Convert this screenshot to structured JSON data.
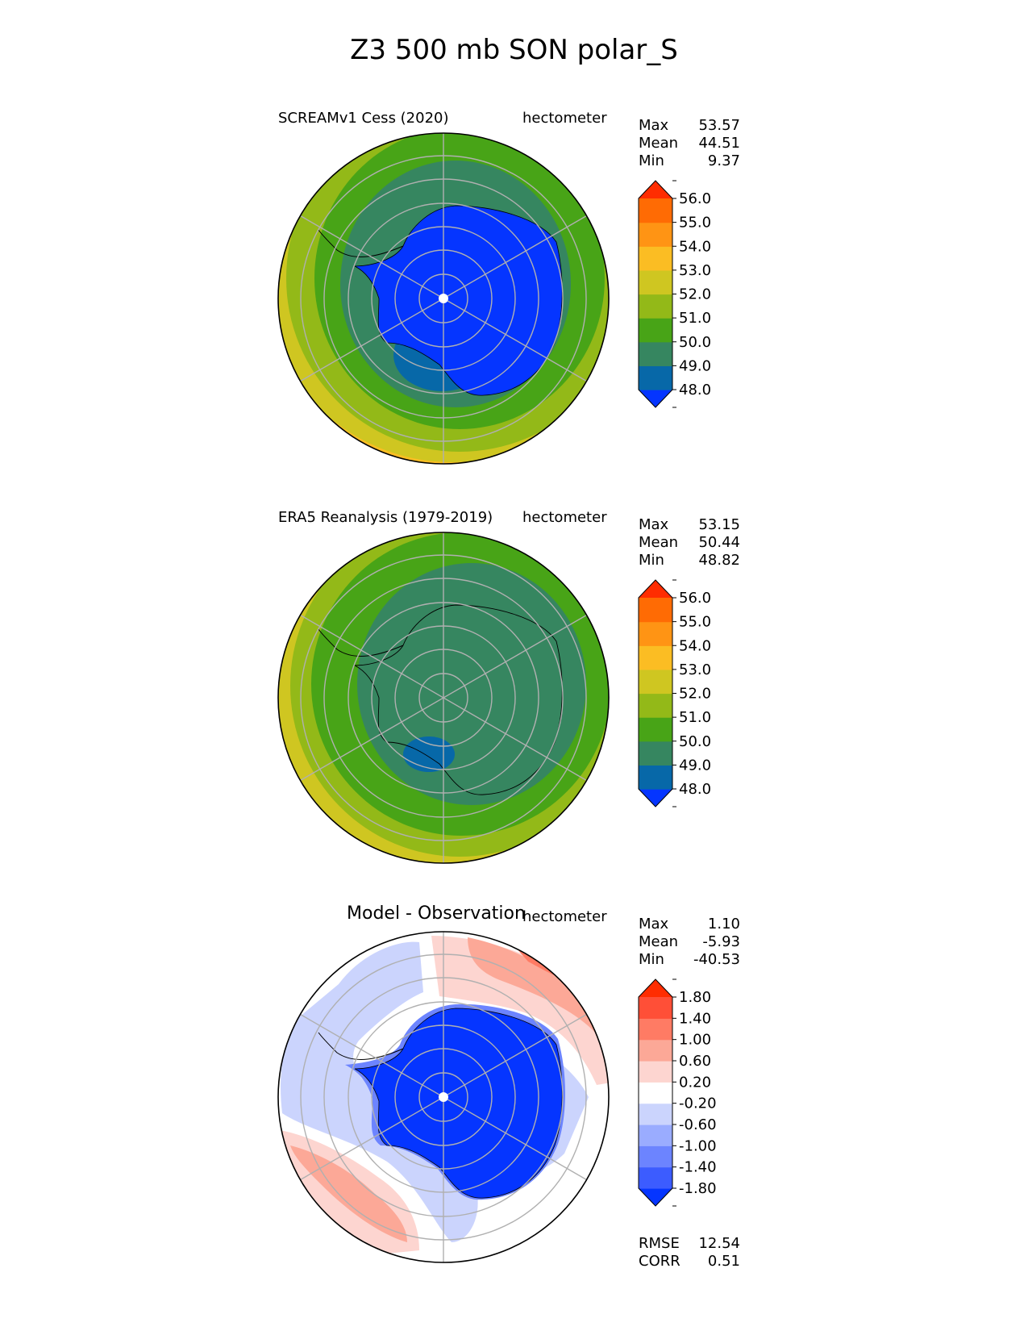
{
  "chart_data": [
    {
      "type": "heatmap",
      "projection": "south-polar-stereographic",
      "title": "Z3 500 mb SON polar_S",
      "subtitle": "SCREAMv1 Cess (2020)",
      "units": "hectometer",
      "stats": {
        "Max": "53.57",
        "Mean": "44.51",
        "Min": "9.37"
      },
      "colorbar": {
        "ticks": [
          "48.0",
          "49.0",
          "50.0",
          "51.0",
          "52.0",
          "53.0",
          "54.0",
          "55.0",
          "56.0"
        ],
        "colors": [
          "#0535ff",
          "#0768a8",
          "#368660",
          "#48a417",
          "#93b918",
          "#cfc621",
          "#fbbd23",
          "#ff9414",
          "#ff6b04",
          "#ff2d01"
        ],
        "extend": "both"
      },
      "field_summary": {
        "rings_outer_to_inner": [
          53,
          52,
          51,
          50,
          49,
          47
        ]
      }
    },
    {
      "type": "heatmap",
      "projection": "south-polar-stereographic",
      "subtitle": "ERA5 Reanalysis (1979-2019)",
      "units": "hectometer",
      "stats": {
        "Max": "53.15",
        "Mean": "50.44",
        "Min": "48.82"
      },
      "colorbar": {
        "ticks": [
          "48.0",
          "49.0",
          "50.0",
          "51.0",
          "52.0",
          "53.0",
          "54.0",
          "55.0",
          "56.0"
        ],
        "colors": [
          "#0535ff",
          "#0768a8",
          "#368660",
          "#48a417",
          "#93b918",
          "#cfc621",
          "#fbbd23",
          "#ff9414",
          "#ff6b04",
          "#ff2d01"
        ],
        "extend": "both"
      },
      "field_summary": {
        "rings_outer_to_inner": [
          52.5,
          51.5,
          50.5,
          49.5,
          48.5
        ]
      }
    },
    {
      "type": "heatmap",
      "projection": "south-polar-stereographic",
      "subtitle": "Model - Observation",
      "units": "hectometer",
      "stats": {
        "Max": "1.10",
        "Mean": "-5.93",
        "Min": "-40.53"
      },
      "metrics": {
        "RMSE": "12.54",
        "CORR": "0.51"
      },
      "colorbar": {
        "ticks": [
          "-1.80",
          "-1.40",
          "-1.00",
          "-0.60",
          "-0.20",
          "0.20",
          "0.60",
          "1.00",
          "1.40",
          "1.80"
        ],
        "colors": [
          "#0535ff",
          "#3c5cff",
          "#6c84ff",
          "#9aacff",
          "#cbd4fd",
          "#ffffff",
          "#fdd5d0",
          "#fca897",
          "#ff7b64",
          "#ff4f37",
          "#ff2d01"
        ],
        "extend": "both"
      }
    }
  ],
  "labels": {
    "max": "Max",
    "mean": "Mean",
    "min": "Min",
    "rmse": "RMSE",
    "corr": "CORR"
  }
}
